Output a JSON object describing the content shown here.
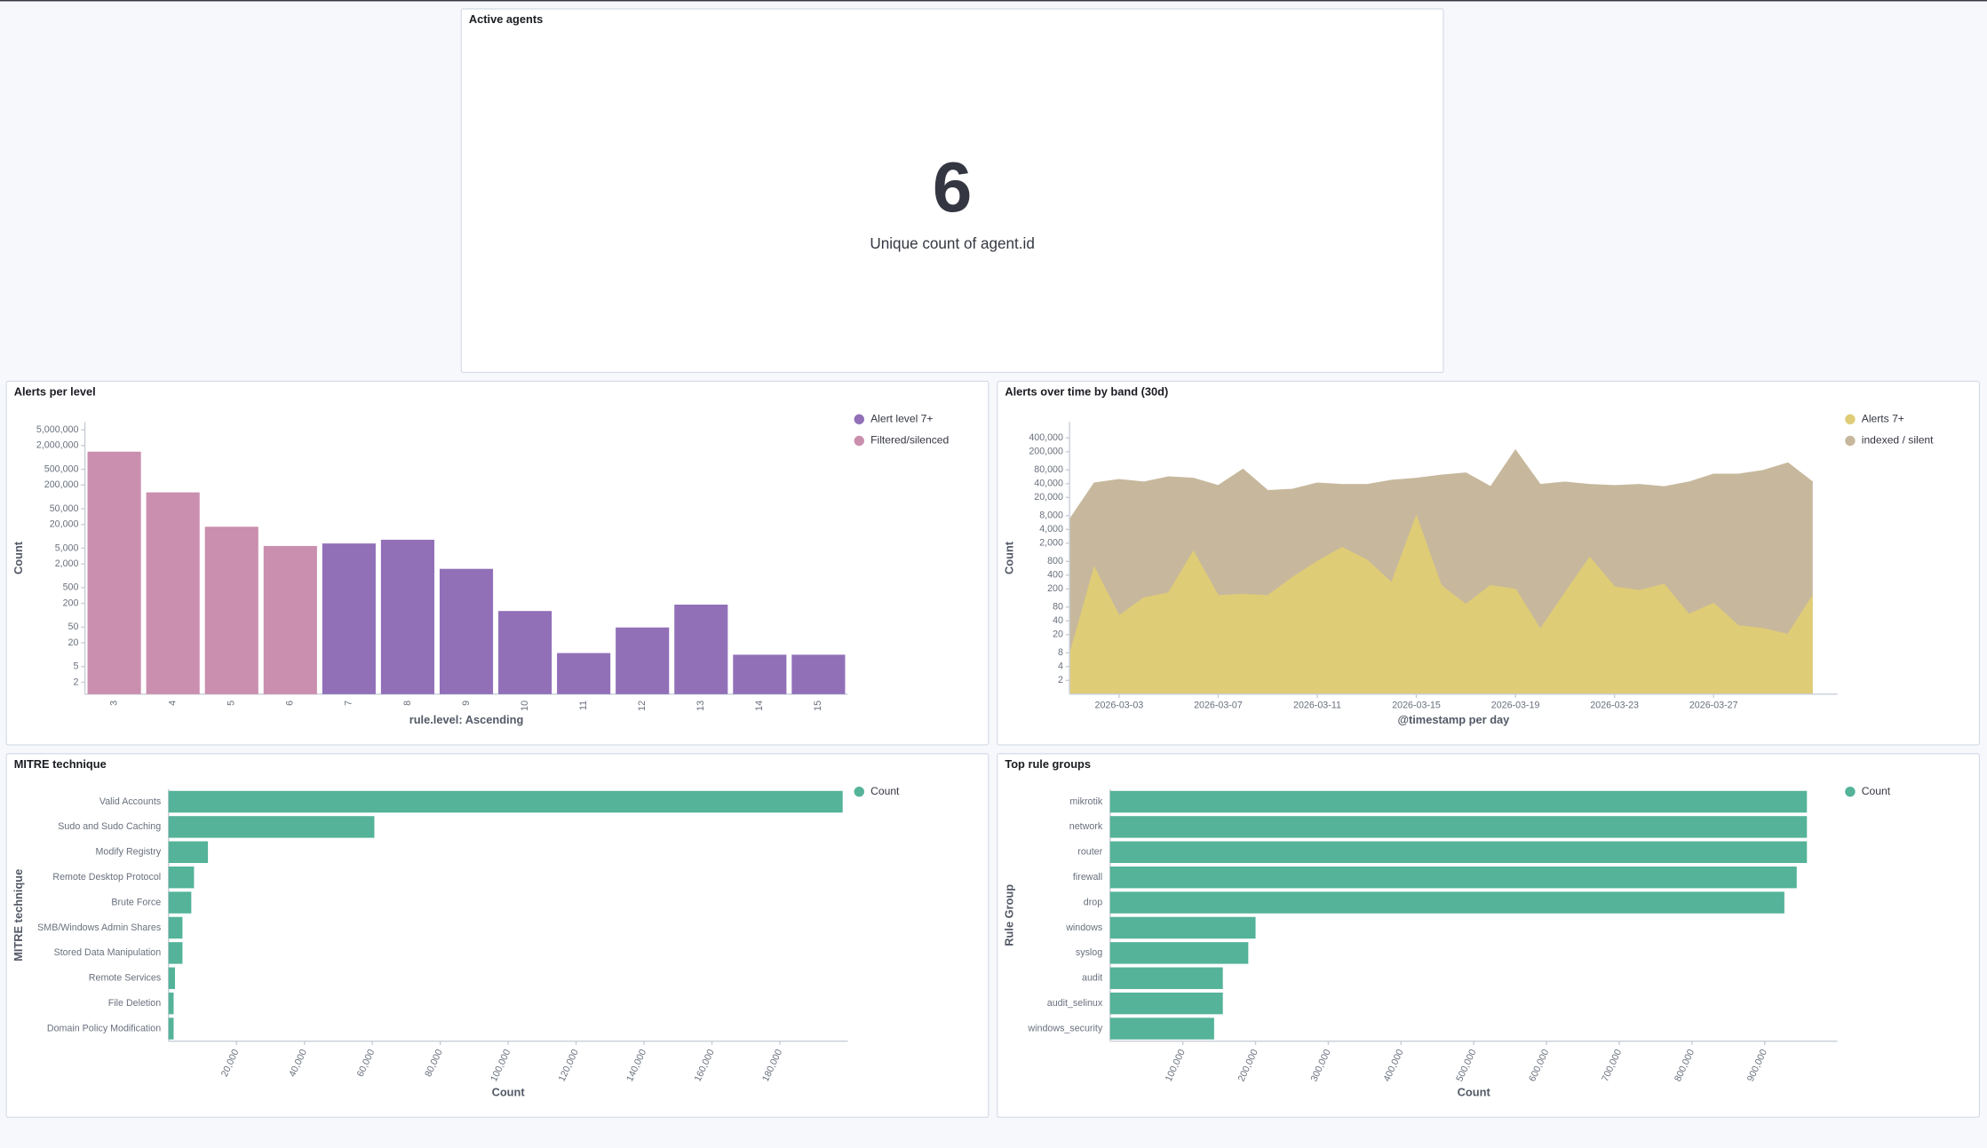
{
  "chart_data": [
    {
      "type": "metric",
      "title": "Active agents",
      "value": 6,
      "label": "Unique count of agent.id"
    },
    {
      "type": "bar",
      "orientation": "vertical",
      "title": "Alerts per level",
      "x_label": "rule.level: Ascending",
      "y_label": "Count",
      "yscale": "log",
      "grid": false,
      "legend": "top-right",
      "categories": [
        "3",
        "4",
        "5",
        "6",
        "7",
        "8",
        "9",
        "10",
        "11",
        "12",
        "13",
        "14",
        "15"
      ],
      "series": [
        {
          "name": "Alert level 7+",
          "color": "#9170b8",
          "values": [
            null,
            null,
            null,
            null,
            6600,
            8200,
            1500,
            128,
            11,
            49,
            186,
            10,
            10
          ]
        },
        {
          "name": "Filtered/silenced",
          "color": "#ca8eae",
          "values": [
            1400000,
            130000,
            17500,
            5700,
            null,
            null,
            null,
            null,
            null,
            null,
            null,
            null,
            null
          ]
        }
      ],
      "ylim": [
        1,
        8000000
      ],
      "yticks": [
        2,
        5,
        20,
        50,
        200,
        500,
        {
          "value": 2000,
          "label": "2,000"
        },
        {
          "value": 5000,
          "label": "5,000"
        },
        {
          "value": 20000,
          "label": "20,000"
        },
        {
          "value": 50000,
          "label": "50,000"
        },
        {
          "value": 200000,
          "label": "200,000"
        },
        {
          "value": 500000,
          "label": "500,000"
        },
        {
          "value": 2000000,
          "label": "2,000,000"
        },
        {
          "value": 5000000,
          "label": "5,000,000"
        }
      ]
    },
    {
      "type": "area",
      "title": "Alerts over time by band (30d)",
      "x_label": "@timestamp per day",
      "y_label": "Count",
      "yscale": "log",
      "grid": false,
      "legend": "top-right",
      "x": [
        "2026-03-01",
        "2026-03-02",
        "2026-03-03",
        "2026-03-04",
        "2026-03-05",
        "2026-03-06",
        "2026-03-07",
        "2026-03-08",
        "2026-03-09",
        "2026-03-10",
        "2026-03-11",
        "2026-03-12",
        "2026-03-13",
        "2026-03-14",
        "2026-03-15",
        "2026-03-16",
        "2026-03-17",
        "2026-03-18",
        "2026-03-19",
        "2026-03-20",
        "2026-03-21",
        "2026-03-22",
        "2026-03-23",
        "2026-03-24",
        "2026-03-25",
        "2026-03-26",
        "2026-03-27",
        "2026-03-28",
        "2026-03-29",
        "2026-03-30",
        "2026-03-31"
      ],
      "series": [
        {
          "name": "Alerts 7+",
          "color": "#dfcc76",
          "values": [
            7,
            575,
            51,
            126,
            162,
            1300,
            141,
            151,
            141,
            350,
            790,
            1600,
            850,
            270,
            7700,
            235,
            91,
            235,
            195,
            26,
            162,
            960,
            220,
            183,
            250,
            55,
            96,
            31,
            27,
            20,
            141
          ]
        },
        {
          "name": "indexed / silent",
          "color": "#c7b89d",
          "values": [
            6500,
            41000,
            49000,
            43000,
            56000,
            52000,
            36000,
            82000,
            28000,
            30000,
            41000,
            38000,
            38000,
            47000,
            52000,
            61000,
            68000,
            34000,
            215000,
            38000,
            43000,
            38000,
            36000,
            38000,
            34000,
            43000,
            64000,
            64000,
            77000,
            113000,
            43000
          ]
        }
      ],
      "xlim": [
        "2026-03-01",
        "2026-04-01"
      ],
      "xticks": [
        "2026-03-03",
        "2026-03-07",
        "2026-03-11",
        "2026-03-15",
        "2026-03-19",
        "2026-03-23",
        "2026-03-27"
      ],
      "ylim": [
        1,
        900000
      ],
      "yticks": [
        2,
        4,
        8,
        20,
        40,
        80,
        200,
        400,
        800,
        {
          "value": 2000,
          "label": "2,000"
        },
        {
          "value": 4000,
          "label": "4,000"
        },
        {
          "value": 8000,
          "label": "8,000"
        },
        {
          "value": 20000,
          "label": "20,000"
        },
        {
          "value": 40000,
          "label": "40,000"
        },
        {
          "value": 80000,
          "label": "80,000"
        },
        {
          "value": 200000,
          "label": "200,000"
        },
        {
          "value": 400000,
          "label": "400,000"
        }
      ]
    },
    {
      "type": "bar",
      "orientation": "horizontal",
      "title": "MITRE technique",
      "x_label": "Count",
      "y_label": "MITRE technique",
      "grid": false,
      "legend": "top-right",
      "categories": [
        "Valid Accounts",
        "Sudo and Sudo Caching",
        "Modify Registry",
        "Remote Desktop Protocol",
        "Brute Force",
        "SMB/Windows Admin Shares",
        "Stored Data Manipulation",
        "Remote Services",
        "File Deletion",
        "Domain Policy Modification"
      ],
      "series": [
        {
          "name": "Count",
          "color": "#54b399",
          "values": [
            198500,
            60600,
            11600,
            7500,
            6700,
            4100,
            4100,
            1900,
            1500,
            1500
          ]
        }
      ],
      "xlim": [
        0,
        200000
      ],
      "xticks": [
        {
          "value": 20000,
          "label": "20,000"
        },
        {
          "value": 40000,
          "label": "40,000"
        },
        {
          "value": 60000,
          "label": "60,000"
        },
        {
          "value": 80000,
          "label": "80,000"
        },
        {
          "value": 100000,
          "label": "100,000"
        },
        {
          "value": 120000,
          "label": "120,000"
        },
        {
          "value": 140000,
          "label": "140,000"
        },
        {
          "value": 160000,
          "label": "160,000"
        },
        {
          "value": 180000,
          "label": "180,000"
        }
      ]
    },
    {
      "type": "bar",
      "orientation": "horizontal",
      "title": "Top rule groups",
      "x_label": "Count",
      "y_label": "Rule Group",
      "grid": false,
      "legend": "top-right",
      "categories": [
        "mikrotik",
        "network",
        "router",
        "firewall",
        "drop",
        "windows",
        "syslog",
        "audit",
        "audit_selinux",
        "windows_security"
      ],
      "series": [
        {
          "name": "Count",
          "color": "#54b399",
          "values": [
            958000,
            958000,
            958000,
            944000,
            927000,
            200000,
            190000,
            155000,
            155000,
            143000
          ]
        }
      ],
      "xlim": [
        0,
        1000000
      ],
      "xticks": [
        {
          "value": 100000,
          "label": "100,000"
        },
        {
          "value": 200000,
          "label": "200,000"
        },
        {
          "value": 300000,
          "label": "300,000"
        },
        {
          "value": 400000,
          "label": "400,000"
        },
        {
          "value": 500000,
          "label": "500,000"
        },
        {
          "value": 600000,
          "label": "600,000"
        },
        {
          "value": 700000,
          "label": "700,000"
        },
        {
          "value": 800000,
          "label": "800,000"
        },
        {
          "value": 900000,
          "label": "900,000"
        }
      ]
    }
  ]
}
